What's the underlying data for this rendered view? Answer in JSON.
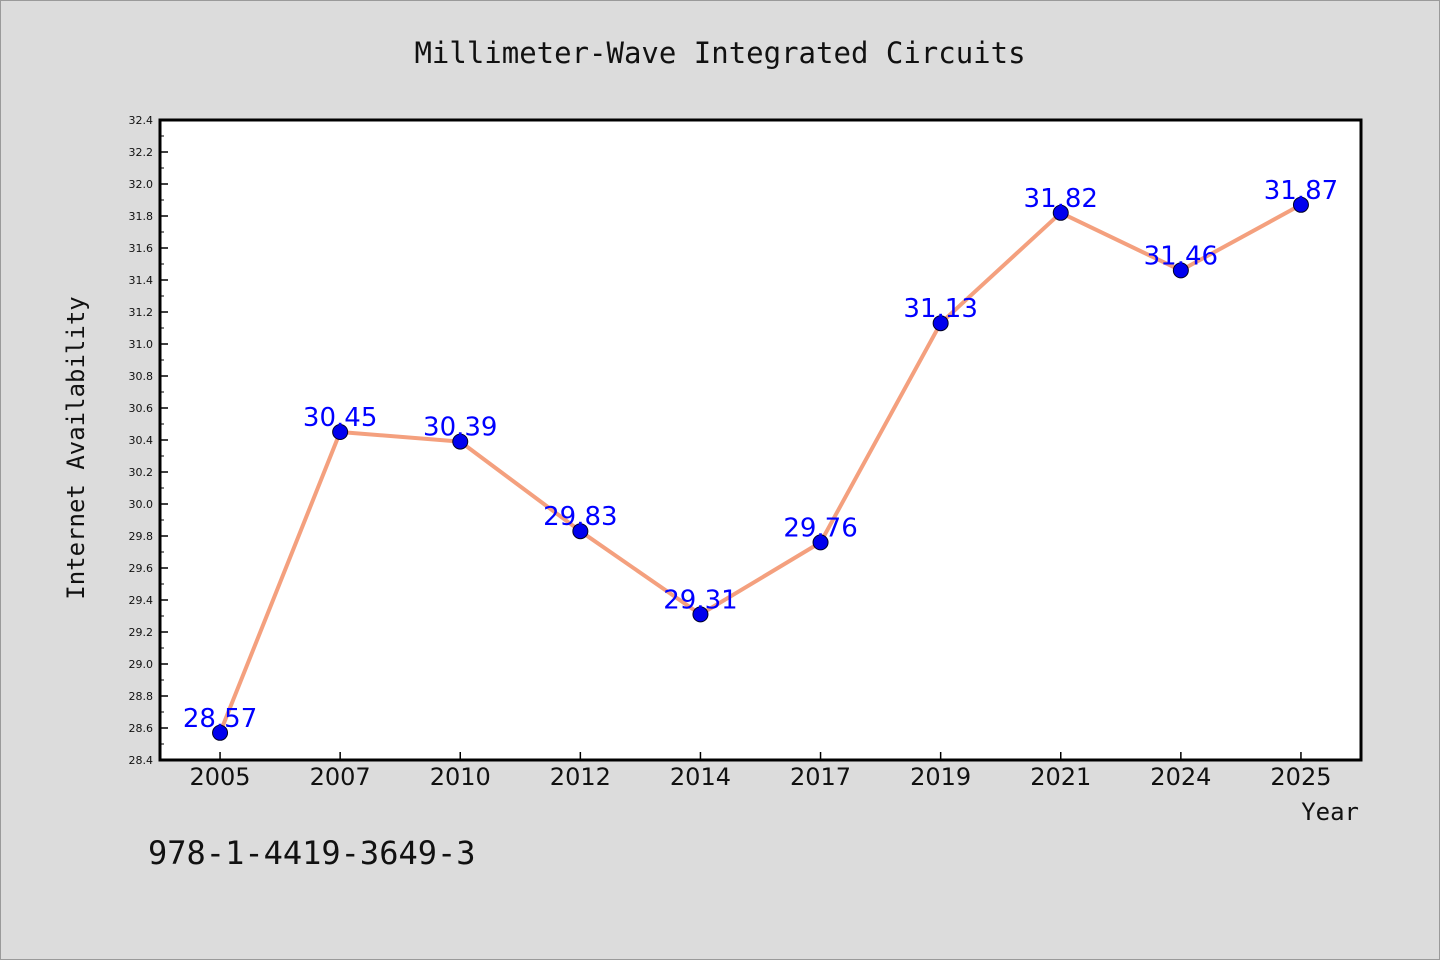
{
  "chart_data": {
    "type": "line",
    "title": "Millimeter-Wave Integrated Circuits",
    "xlabel": "Year",
    "ylabel": "Internet Availability",
    "categories": [
      "2005",
      "2007",
      "2010",
      "2012",
      "2014",
      "2017",
      "2019",
      "2021",
      "2024",
      "2025"
    ],
    "series": [
      {
        "values": [
          28.57,
          30.45,
          30.39,
          29.83,
          29.31,
          29.76,
          31.13,
          31.82,
          31.46,
          31.87
        ],
        "data_labels": [
          "28.57",
          "30.45",
          "30.39",
          "29.83",
          "29.31",
          "29.76",
          "31.13",
          "31.82",
          "31.46",
          "31.87"
        ],
        "line_color": "#f4a07e",
        "marker_color": "#0000ee"
      }
    ],
    "ylim": [
      28.4,
      32.4
    ],
    "yticks": [
      "28.4",
      "28.6",
      "28.8",
      "29.0",
      "29.2",
      "29.4",
      "29.6",
      "29.8",
      "30.0",
      "30.2",
      "30.4",
      "30.6",
      "30.8",
      "31.0",
      "31.2",
      "31.4",
      "31.6",
      "31.8",
      "32.0",
      "32.2",
      "32.4"
    ],
    "grid": false,
    "legend": "none",
    "label_color": "#0000ff",
    "background": "#dcdcdc",
    "plot_background": "#ffffff"
  },
  "footnote": "978-1-4419-3649-3"
}
